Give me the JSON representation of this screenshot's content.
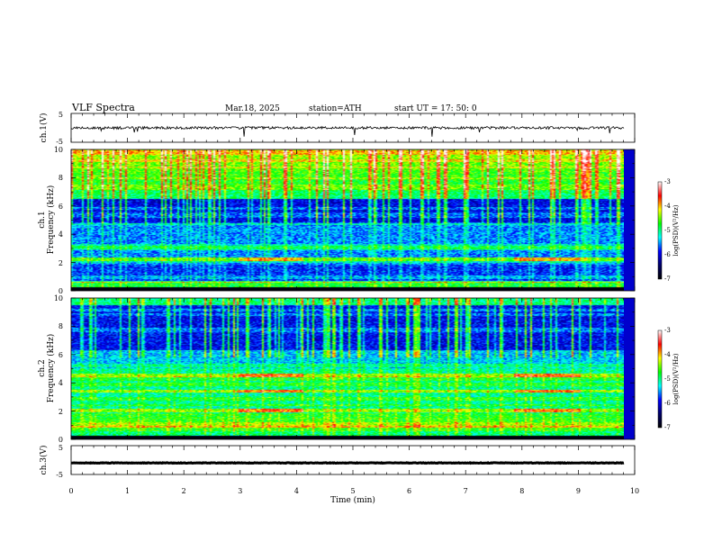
{
  "header": {
    "title": "VLF  Spectra",
    "date": "Mar.18, 2025",
    "station": "station=ATH",
    "start_ut": "start  UT  =   17: 50: 0"
  },
  "chart_data": [
    {
      "type": "line",
      "title": "",
      "ylabel": "ch.1(V)",
      "ylim": [
        -5,
        5
      ],
      "yticks": [
        "5",
        "-5"
      ],
      "xlim": [
        0,
        10
      ],
      "series": [
        {
          "color": "#000000",
          "baseline": 0.0,
          "noise": 0.9,
          "spike_depth": 3.5
        }
      ]
    },
    {
      "type": "heatmap",
      "ylabel_line1": "ch.1",
      "ylabel_line2": "Frequency  (kHz)",
      "ylim": [
        0,
        10
      ],
      "yticks": [
        "0",
        "2",
        "4",
        "6",
        "8",
        "10"
      ],
      "xlim": [
        0,
        10
      ],
      "scale": "log(PSD)(V²/Hz)",
      "zlim": [
        -7,
        -3
      ],
      "features": {
        "dark_band_khz": [
          4.8,
          6.5
        ],
        "quiet_band_khz": [
          0.6,
          1.8
        ],
        "tone_khz": [
          2.2
        ],
        "sferic_count": 90
      }
    },
    {
      "type": "heatmap",
      "ylabel_line1": "ch.2",
      "ylabel_line2": "Frequency  (kHz)",
      "ylim": [
        0,
        10
      ],
      "yticks": [
        "0",
        "2",
        "4",
        "6",
        "8",
        "10"
      ],
      "xlim": [
        0,
        10
      ],
      "scale": "log(PSD)(V²/Hz)",
      "zlim": [
        -7,
        -3
      ],
      "features": {
        "dark_band_khz": [
          6.3,
          9.5
        ],
        "tone_khz": [
          4.5,
          3.4,
          2.0
        ],
        "sferic_count": 90
      }
    },
    {
      "type": "line",
      "ylabel": "ch.3(V)",
      "ylim": [
        -5,
        5
      ],
      "yticks": [
        "5",
        "-5"
      ],
      "xlim": [
        0,
        10
      ],
      "xticks": [
        "0",
        "1",
        "2",
        "3",
        "4",
        "5",
        "6",
        "7",
        "8",
        "9",
        "10"
      ],
      "xlabel": "Time  (min)",
      "series": [
        {
          "color": "#000000",
          "baseline": -1.0,
          "noise": 0.2
        }
      ]
    }
  ],
  "colorbar": {
    "label": "log(PSD)(V²/Hz)",
    "ticks": [
      "-3",
      "-4",
      "-5",
      "-6",
      "-7"
    ],
    "stops": [
      "#ffffff",
      "#ff0000",
      "#ffff00",
      "#00ff00",
      "#00ffff",
      "#0000ff",
      "#000066",
      "#000000"
    ]
  }
}
